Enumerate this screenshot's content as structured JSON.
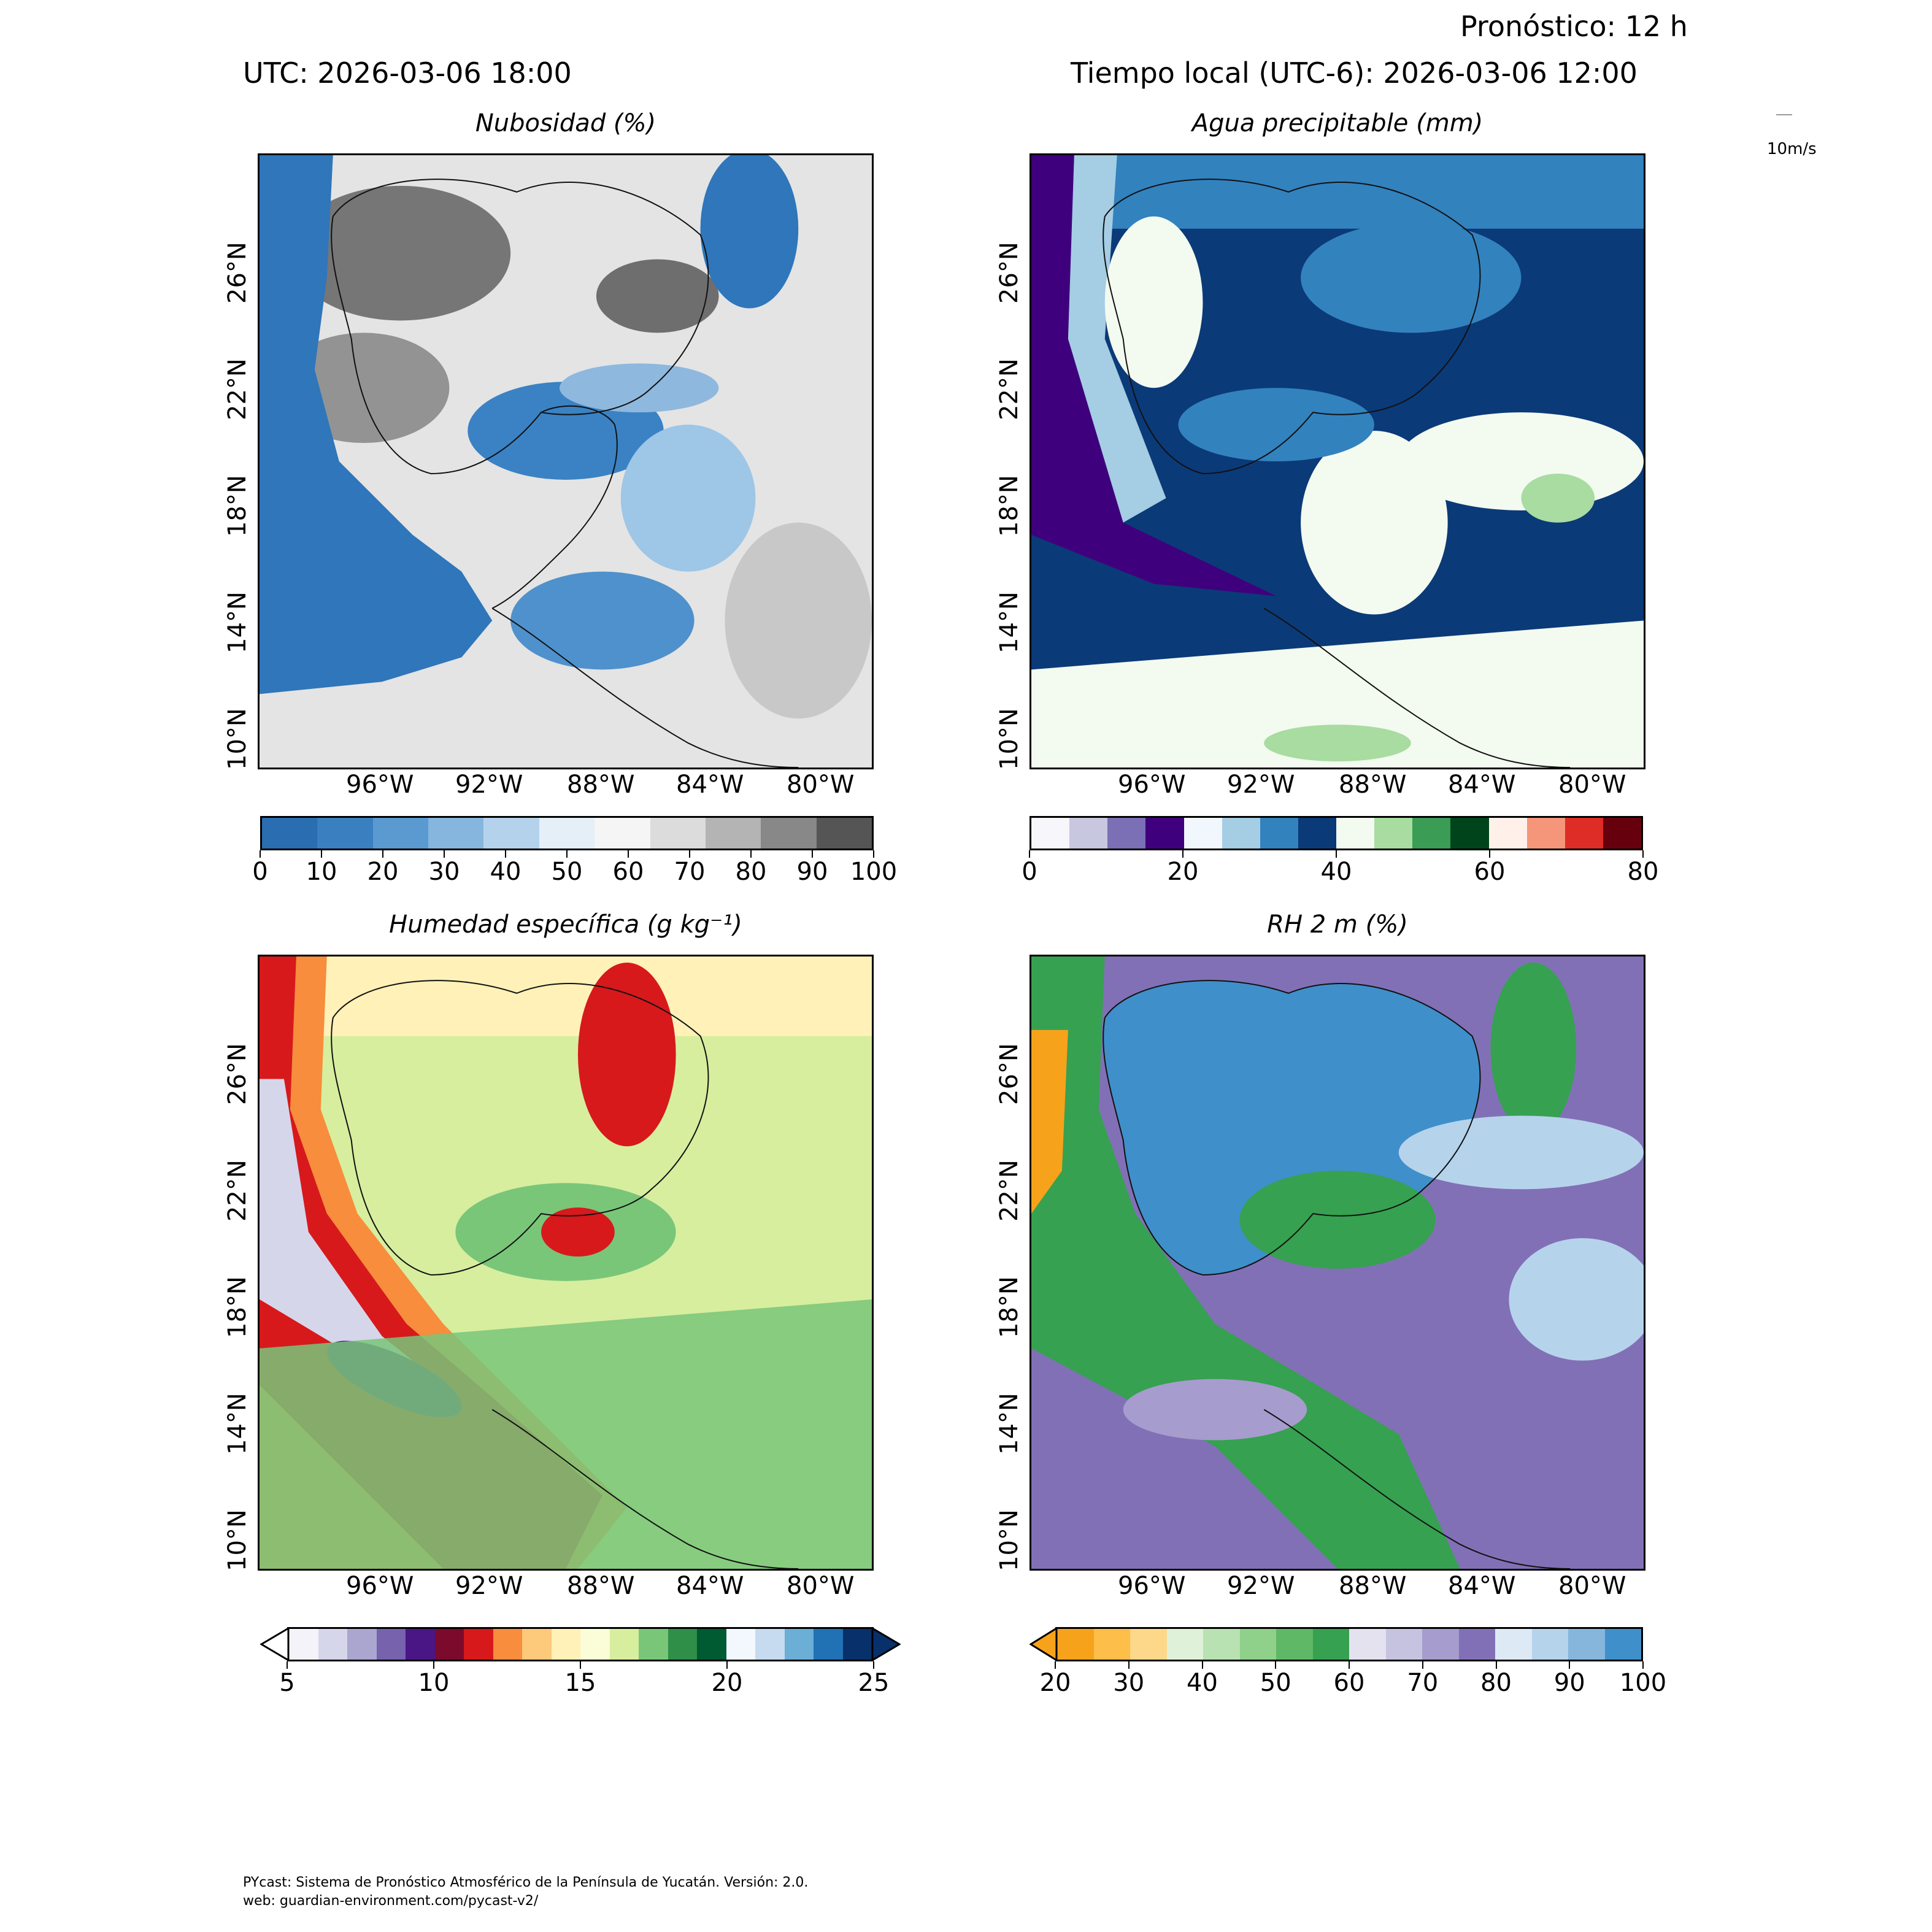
{
  "header": {
    "forecast": "Pronóstico: 12 h",
    "utc": "UTC:  2026-03-06 18:00",
    "local": "Tiempo local (UTC-6): 2026-03-06 12:00",
    "wind_key": "10m/s"
  },
  "lon_ticks": [
    "96°W",
    "92°W",
    "88°W",
    "84°W",
    "80°W"
  ],
  "lat_ticks": [
    "26°N",
    "22°N",
    "18°N",
    "14°N",
    "10°N"
  ],
  "panels": [
    {
      "title": "Nubosidad (%)",
      "colorbar": {
        "ticks": [
          "0",
          "10",
          "20",
          "30",
          "40",
          "50",
          "60",
          "70",
          "80",
          "90",
          "100"
        ],
        "colors": [
          "#2a6db0",
          "#3a7fc0",
          "#5a9ad0",
          "#86b6de",
          "#b5d2ec",
          "#e4eff8",
          "#f5f5f5",
          "#dcdcdc",
          "#b4b4b4",
          "#888888",
          "#555555"
        ]
      }
    },
    {
      "title": "Agua precipitable (mm)",
      "colorbar": {
        "ticks": [
          "0",
          "20",
          "40",
          "60",
          "80"
        ],
        "colors": [
          "#f6f6fb",
          "#c8c7e0",
          "#7b6fb6",
          "#3f007d",
          "#f2f7fd",
          "#a5cde3",
          "#3282be",
          "#0b3a78",
          "#f3faf0",
          "#a8dca0",
          "#3a9c55",
          "#00441b",
          "#fff1ea",
          "#f5967a",
          "#de2d26",
          "#67000d"
        ]
      }
    },
    {
      "title": "Humedad específica (g kg⁻¹)",
      "colorbar": {
        "ticks": [
          "5",
          "10",
          "15",
          "20",
          "25"
        ],
        "colors": [
          "#f3f3f9",
          "#d6d6ea",
          "#aaa6cf",
          "#7662ad",
          "#4a1686",
          "#7c0a2c",
          "#d7191c",
          "#f78d3d",
          "#fdc97a",
          "#fff1b8",
          "#fbfcd8",
          "#d7ee9e",
          "#79c679",
          "#2f8f48",
          "#005a32",
          "#f2f8fd",
          "#c6dbef",
          "#6baed6",
          "#2171b5",
          "#08306b"
        ]
      }
    },
    {
      "title": "RH 2 m (%)",
      "colorbar": {
        "ticks": [
          "20",
          "30",
          "40",
          "50",
          "60",
          "70",
          "80",
          "90",
          "100"
        ],
        "colors": [
          "#f7a21b",
          "#fdbe4a",
          "#fdd88a",
          "#dff2d9",
          "#b8e2b1",
          "#8fd08a",
          "#5fb866",
          "#36a150",
          "#e4e2ef",
          "#c6c3e0",
          "#a69ccd",
          "#8270b6",
          "#ddeaf6",
          "#b6d3ec",
          "#86b6dc",
          "#3f8fca"
        ]
      }
    }
  ],
  "footer": {
    "line1": "PYcast: Sistema de Pronóstico Atmosférico de la Península de Yucatán. Versión: 2.0.",
    "line2": "web: guardian-environment.com/pycast-v2/"
  }
}
